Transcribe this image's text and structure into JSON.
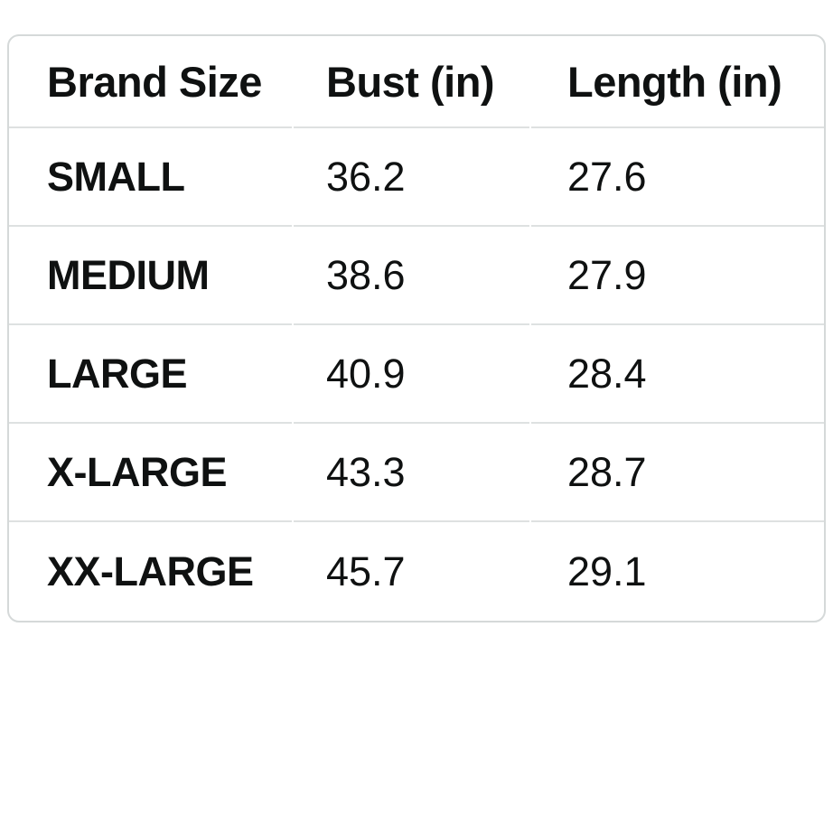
{
  "size_chart": {
    "columns": [
      {
        "label": "Brand Size"
      },
      {
        "label": "Bust (in)"
      },
      {
        "label": "Length (in)"
      }
    ],
    "rows": [
      {
        "size": "SMALL",
        "bust": "36.2",
        "length": "27.6"
      },
      {
        "size": "MEDIUM",
        "bust": "38.6",
        "length": "27.9"
      },
      {
        "size": "LARGE",
        "bust": "40.9",
        "length": "28.4"
      },
      {
        "size": "X-LARGE",
        "bust": "43.3",
        "length": "28.7"
      },
      {
        "size": "XX-LARGE",
        "bust": "45.7",
        "length": "29.1"
      }
    ],
    "colors": {
      "card_border": "#d5d9d9",
      "row_divider": "#dee1e1",
      "text": "#0f1111",
      "background": "#ffffff"
    }
  }
}
